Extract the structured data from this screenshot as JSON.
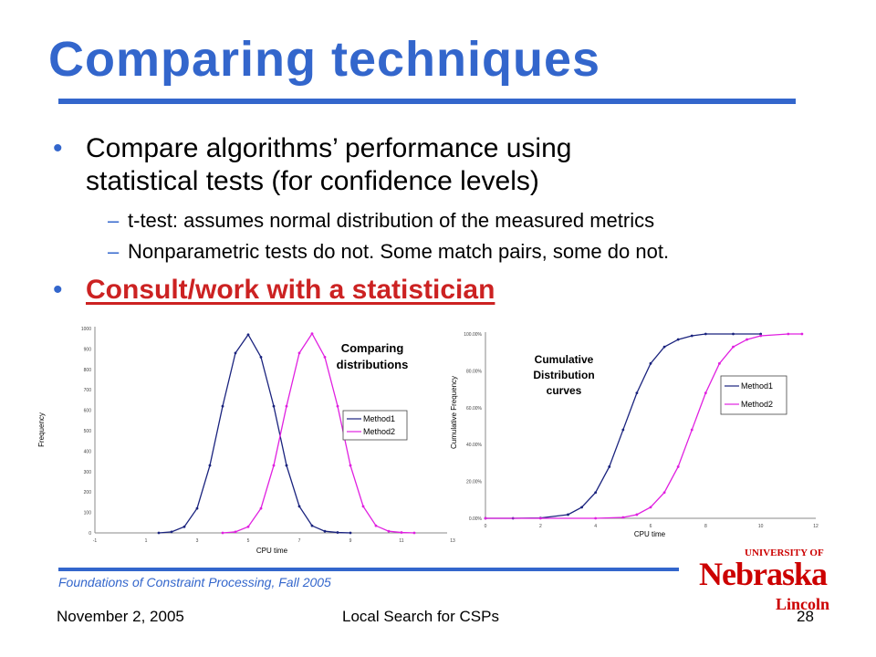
{
  "slide": {
    "title": "Comparing techniques",
    "bullets": [
      {
        "line1": "Compare algorithms’ performance using",
        "line2": "statistical tests (for confidence levels)"
      }
    ],
    "sub_bullets": [
      "t-test: assumes normal distribution of the measured metrics",
      "Nonparametric tests do not. Some match pairs, some do not."
    ],
    "highlight_bullet": "Consult/work with a statistician",
    "bullet_glyph": "•",
    "dash_glyph": "–"
  },
  "footer": {
    "course": "Foundations of Constraint Processing, Fall 2005",
    "date": "November 2, 2005",
    "topic": "Local Search for CSPs",
    "page": "28"
  },
  "logo": {
    "university_of": "UNIVERSITY OF",
    "name": "Nebraska",
    "campus": "Lincoln"
  },
  "colors": {
    "title": "#3366cc",
    "highlight": "#cc2222",
    "method1": "#1a237e",
    "method2": "#e020e0",
    "logo": "#cc0000"
  },
  "chart_data": [
    {
      "type": "line",
      "title": "Comparing distributions",
      "xlabel": "CPU time",
      "ylabel": "Frequency",
      "xlim": [
        -1,
        13
      ],
      "ylim": [
        0,
        1000
      ],
      "xticks": [
        -1,
        1,
        3,
        5,
        7,
        9,
        11,
        13
      ],
      "yticks": [
        0,
        100,
        200,
        300,
        400,
        500,
        600,
        700,
        800,
        900,
        1000
      ],
      "ytick_labels": [
        "0",
        "100",
        "200",
        "300",
        "400",
        "500",
        "600",
        "700",
        "800",
        "900",
        "1000"
      ],
      "legend": "right",
      "series": [
        {
          "name": "Method1",
          "x": [
            1.5,
            2.0,
            2.5,
            3.0,
            3.5,
            4.0,
            4.5,
            5.0,
            5.5,
            6.0,
            6.5,
            7.0,
            7.5,
            8.0,
            8.5,
            9.0
          ],
          "y": [
            0,
            5,
            30,
            120,
            330,
            620,
            880,
            970,
            860,
            620,
            330,
            130,
            35,
            8,
            2,
            0
          ]
        },
        {
          "name": "Method2",
          "x": [
            4.0,
            4.5,
            5.0,
            5.5,
            6.0,
            6.5,
            7.0,
            7.5,
            8.0,
            8.5,
            9.0,
            9.5,
            10.0,
            10.5,
            11.0,
            11.5
          ],
          "y": [
            0,
            5,
            30,
            120,
            330,
            620,
            880,
            975,
            860,
            620,
            330,
            130,
            35,
            8,
            2,
            0
          ]
        }
      ]
    },
    {
      "type": "line",
      "title": "Cumulative Distribution curves",
      "xlabel": "CPU time",
      "ylabel": "Cumulative Frequency",
      "xlim": [
        0,
        12
      ],
      "ylim": [
        0,
        100
      ],
      "xticks": [
        0,
        2,
        4,
        6,
        8,
        10,
        12
      ],
      "yticks": [
        0,
        20,
        40,
        60,
        80,
        100
      ],
      "ytick_labels": [
        "0.00%",
        "20.00%",
        "40.00%",
        "60.00%",
        "80.00%",
        "100.00%"
      ],
      "legend": "right",
      "series": [
        {
          "name": "Method1",
          "x": [
            0,
            1,
            2,
            3,
            3.5,
            4,
            4.5,
            5,
            5.5,
            6,
            6.5,
            7,
            7.5,
            8,
            9,
            10
          ],
          "y": [
            0,
            0,
            0.2,
            2,
            6,
            14,
            28,
            48,
            68,
            84,
            93,
            97,
            99,
            100,
            100,
            100
          ]
        },
        {
          "name": "Method2",
          "x": [
            0,
            2,
            4,
            5,
            5.5,
            6,
            6.5,
            7,
            7.5,
            8,
            8.5,
            9,
            9.5,
            10,
            11,
            11.5
          ],
          "y": [
            0,
            0,
            0,
            0.5,
            2,
            6,
            14,
            28,
            48,
            68,
            84,
            93,
            97,
            99,
            100,
            100
          ]
        }
      ]
    }
  ]
}
